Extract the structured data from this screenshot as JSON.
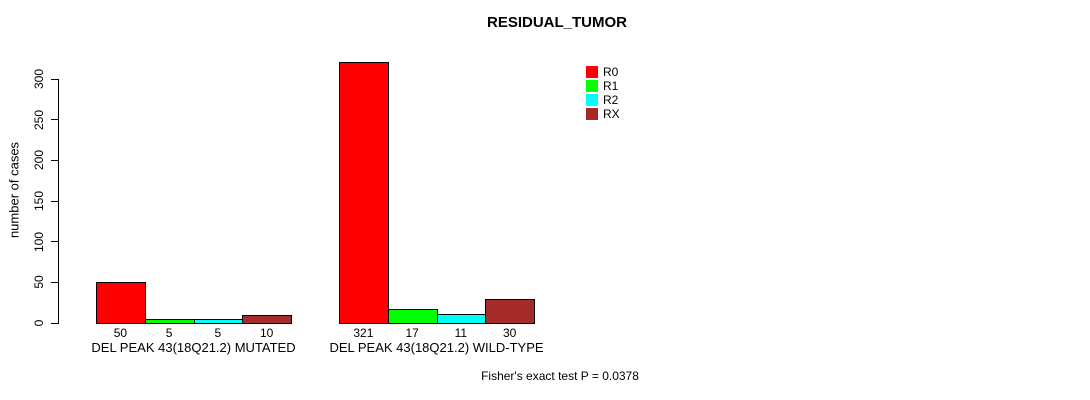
{
  "chart_data": {
    "type": "bar",
    "title": "RESIDUAL_TUMOR",
    "ylabel": "number of cases",
    "xlabel": "",
    "categories": [
      "DEL PEAK 43(18Q21.2) MUTATED",
      "DEL PEAK 43(18Q21.2) WILD-TYPE"
    ],
    "series": [
      {
        "name": "R0",
        "color": "#FF0000",
        "values": [
          50,
          321
        ]
      },
      {
        "name": "R1",
        "color": "#00FF00",
        "values": [
          5,
          17
        ]
      },
      {
        "name": "R2",
        "color": "#00FFFF",
        "values": [
          5,
          11
        ]
      },
      {
        "name": "RX",
        "color": "#A52A2A",
        "values": [
          10,
          30
        ]
      }
    ],
    "ylim": [
      0,
      300
    ],
    "yticks": [
      0,
      50,
      100,
      150,
      200,
      250,
      300
    ],
    "grid": false,
    "legend_position": "top-right",
    "bar_border_color": "#000000",
    "annotation": "Fisher's exact test P = 0.0378"
  }
}
